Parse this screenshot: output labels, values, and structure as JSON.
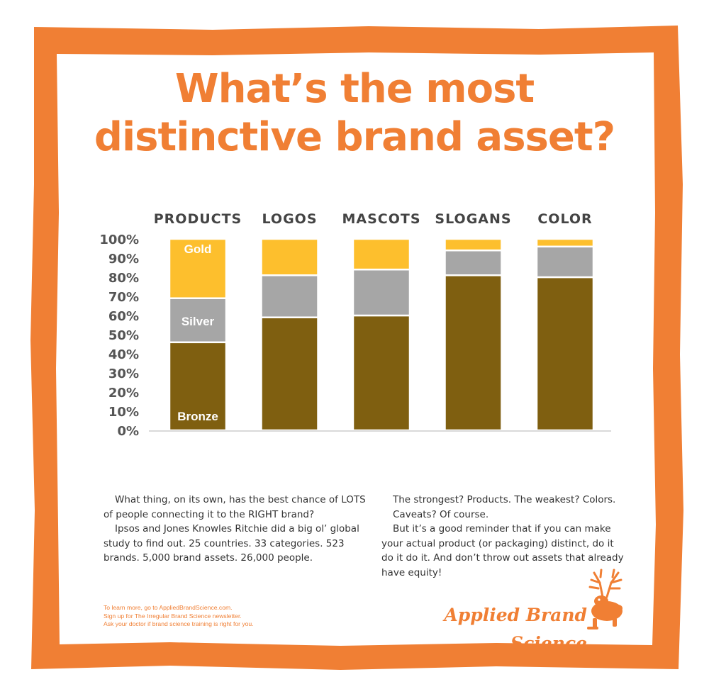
{
  "title": "What’s the most distinctive brand asset?",
  "colors": {
    "accent": "#f07f34",
    "gold": "#fdbf2d",
    "silver": "#a6a6a6",
    "bronze": "#7f5f10",
    "text": "#333333"
  },
  "chart_data": {
    "type": "bar",
    "stacked": true,
    "percent_scale": true,
    "category_axis_position": "top",
    "categories": [
      "PRODUCTS",
      "LOGOS",
      "MASCOTS",
      "SLOGANS",
      "COLOR"
    ],
    "series": [
      {
        "name": "Bronze",
        "color": "#7f5f10",
        "values": [
          46,
          59,
          60,
          81,
          80
        ]
      },
      {
        "name": "Silver",
        "color": "#a6a6a6",
        "values": [
          23,
          22,
          24,
          13,
          16
        ]
      },
      {
        "name": "Gold",
        "color": "#fdbf2d",
        "values": [
          31,
          19,
          16,
          6,
          4
        ]
      }
    ],
    "ylim": [
      0,
      100
    ],
    "yticks": [
      "0%",
      "10%",
      "20%",
      "30%",
      "40%",
      "50%",
      "60%",
      "70%",
      "80%",
      "90%",
      "100%"
    ],
    "segment_labels_on": "PRODUCTS",
    "grid": false,
    "legend": "none"
  },
  "text": {
    "left_paragraphs": [
      "What thing, on its own, has the best chance of LOTS of people connecting it to the RIGHT brand?",
      "Ipsos and Jones Knowles Ritchie did a big ol’ global study to find out. 25 countries. 33 categories. 523 brands. 5,000 brand assets. 26,000 people."
    ],
    "right_paragraphs": [
      "The strongest? Products. The weakest? Colors.",
      "Caveats? Of course.",
      "But it’s a good reminder that if you can make your actual product (or packaging) distinct, do it do it do it. And don’t throw out assets that already have equity!"
    ]
  },
  "footer": {
    "line1": "To learn more, go to AppliedBrandScience.com.",
    "line2": "Sign up for The Irregular Brand Science newsletter.",
    "line3": "Ask your doctor if brand science training is right for you."
  },
  "brand": {
    "name": "Applied Brand Science",
    "logo_icon": "jackalope-icon"
  }
}
